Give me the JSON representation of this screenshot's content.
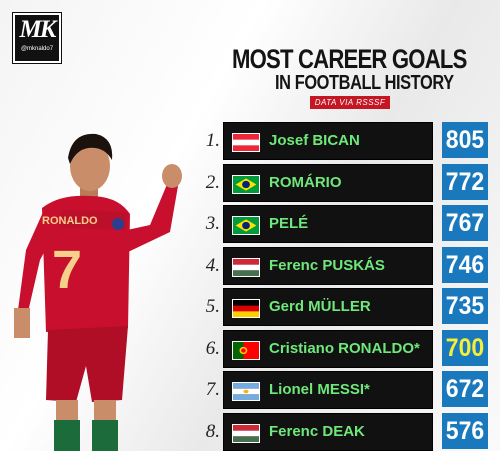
{
  "logo": {
    "mark": "MK",
    "handle": "@mknaldo7"
  },
  "title": {
    "line1": "MOST CAREER GOALS",
    "line2": "IN FOOTBALL HISTORY"
  },
  "source_badge": "DATA VIA RSSSF",
  "player": {
    "shirt_name": "RONALDO",
    "shirt_number": "7"
  },
  "rows": [
    {
      "rank": "1.",
      "name": "Josef BICAN",
      "goals": "805",
      "flag": "austria",
      "highlight": false
    },
    {
      "rank": "2.",
      "name": "ROMÁRIO",
      "goals": "772",
      "flag": "brazil",
      "highlight": false
    },
    {
      "rank": "3.",
      "name": "PELÉ",
      "goals": "767",
      "flag": "brazil",
      "highlight": false
    },
    {
      "rank": "4.",
      "name": "Ferenc PUSKÁS",
      "goals": "746",
      "flag": "hungary",
      "highlight": false
    },
    {
      "rank": "5.",
      "name": "Gerd MÜLLER",
      "goals": "735",
      "flag": "germany",
      "highlight": false
    },
    {
      "rank": "6.",
      "name": "Cristiano RONALDO*",
      "goals": "700",
      "flag": "portugal",
      "highlight": true
    },
    {
      "rank": "7.",
      "name": "Lionel MESSI*",
      "goals": "672",
      "flag": "argentina",
      "highlight": false
    },
    {
      "rank": "8.",
      "name": "Ferenc DEAK",
      "goals": "576",
      "flag": "hungary",
      "highlight": false
    }
  ],
  "colors": {
    "name_text": "#6ee87a",
    "goals_box": "#1a79bd",
    "highlight_goals": "#f5ee3a",
    "badge": "#c41623"
  }
}
